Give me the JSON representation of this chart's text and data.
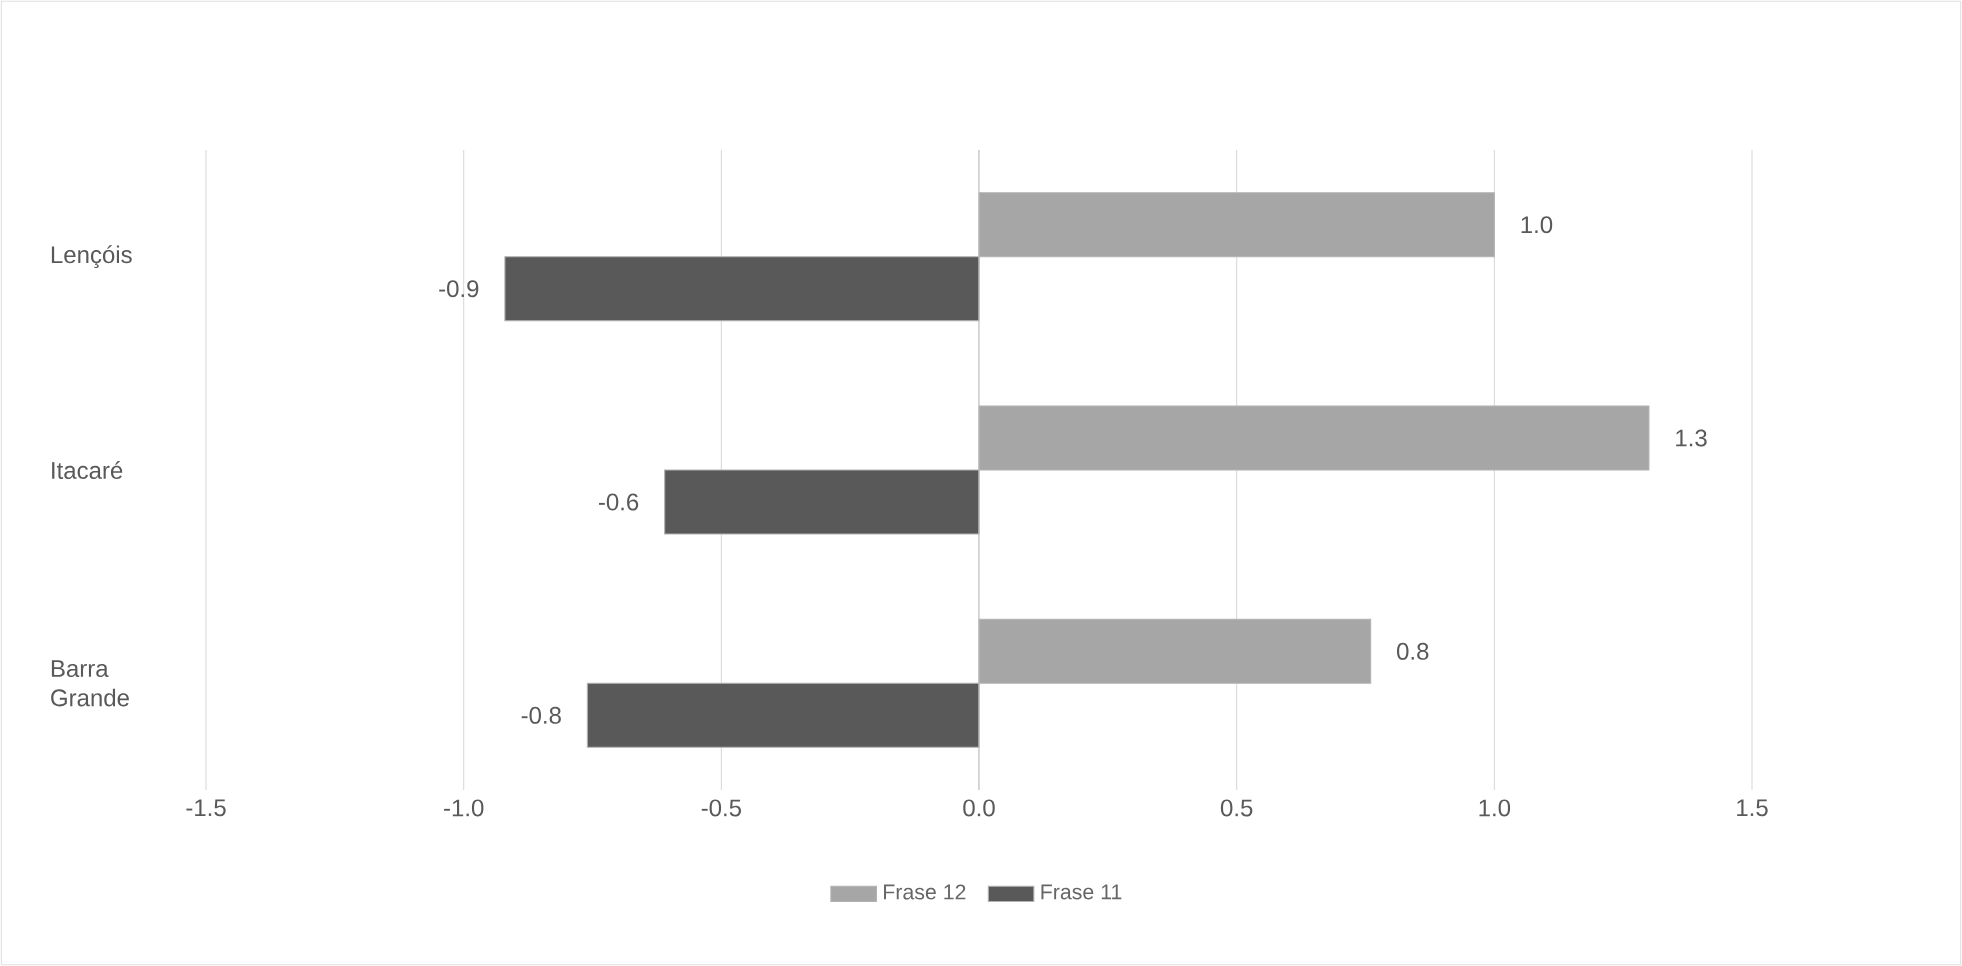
{
  "chart_data": {
    "type": "bar",
    "orientation": "horizontal",
    "categories": [
      "Lençóis",
      "Itacaré",
      "Barra\nGrande"
    ],
    "series": [
      {
        "name": "Frase 12",
        "color": "#a6a6a6",
        "values": [
          1.0,
          1.3,
          0.76
        ],
        "value_labels": [
          "1.0",
          "1.3",
          "0.8"
        ]
      },
      {
        "name": "Frase 11",
        "color": "#595959",
        "values": [
          -0.92,
          -0.61,
          -0.76
        ],
        "value_labels": [
          "-0.9",
          "-0.6",
          "-0.8"
        ]
      }
    ],
    "xlim": [
      -1.5,
      1.5
    ],
    "xticks": [
      {
        "value": -1.5,
        "label": "-1.5"
      },
      {
        "value": -1.0,
        "label": "-1.0"
      },
      {
        "value": -0.5,
        "label": "-0.5"
      },
      {
        "value": 0.0,
        "label": "0.0"
      },
      {
        "value": 0.5,
        "label": "0.5"
      },
      {
        "value": 1.0,
        "label": "1.0"
      },
      {
        "value": 1.5,
        "label": "1.5"
      }
    ],
    "grid": "x",
    "legend": "bottom"
  }
}
